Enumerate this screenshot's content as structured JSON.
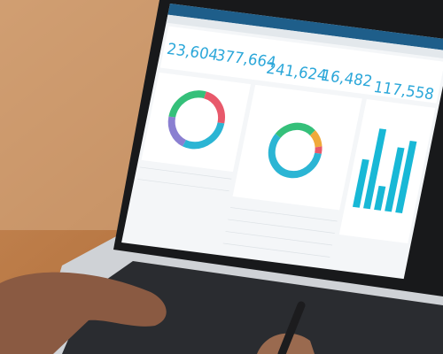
{
  "screen": {
    "kpis": [
      "23,604",
      "377,664",
      "241,624",
      "16,482",
      "117,558"
    ]
  }
}
